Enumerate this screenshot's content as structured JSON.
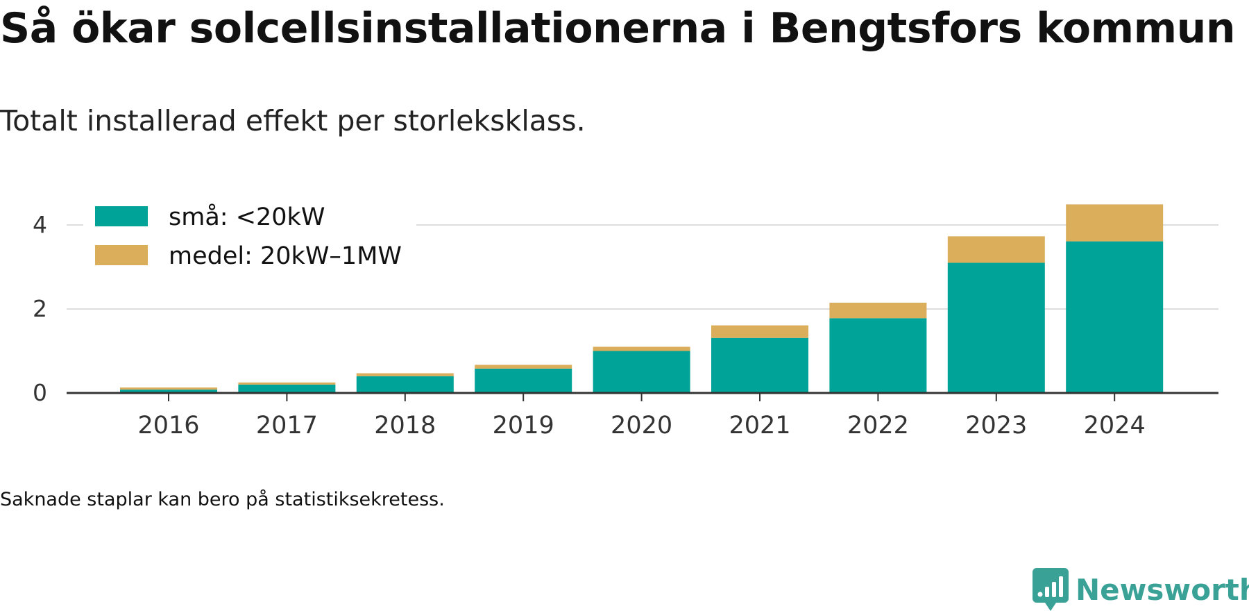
{
  "title": "Så ökar solcellsinstallationerna i Bengtsfors kommun",
  "subtitle": "Totalt installerad effekt per storleksklass.",
  "footnote": "Saknade staplar kan bero på statistiksekretess.",
  "brand": {
    "name": "Newsworthy",
    "icon": "newsworthy-logo-icon",
    "color": "#3aa197"
  },
  "colors": {
    "grid": "#dddddd",
    "axis": "#333333",
    "tick_text": "#333333"
  },
  "chart_data": {
    "type": "bar",
    "stacked": true,
    "categories": [
      "2016",
      "2017",
      "2018",
      "2019",
      "2020",
      "2021",
      "2022",
      "2023",
      "2024"
    ],
    "series": [
      {
        "name": "små: <20kW",
        "color": "#00a398",
        "values": [
          0.08,
          0.2,
          0.4,
          0.58,
          1.0,
          1.31,
          1.78,
          3.1,
          3.61
        ]
      },
      {
        "name": "medel: 20kW–1MW",
        "color": "#dbae5c",
        "values": [
          0.05,
          0.05,
          0.07,
          0.09,
          0.1,
          0.3,
          0.37,
          0.63,
          0.88
        ]
      }
    ],
    "yticks": [
      0,
      2,
      4
    ],
    "ylim": [
      0,
      4.6
    ],
    "grid": true,
    "legend": "top-left",
    "xlabel": "",
    "ylabel": ""
  }
}
